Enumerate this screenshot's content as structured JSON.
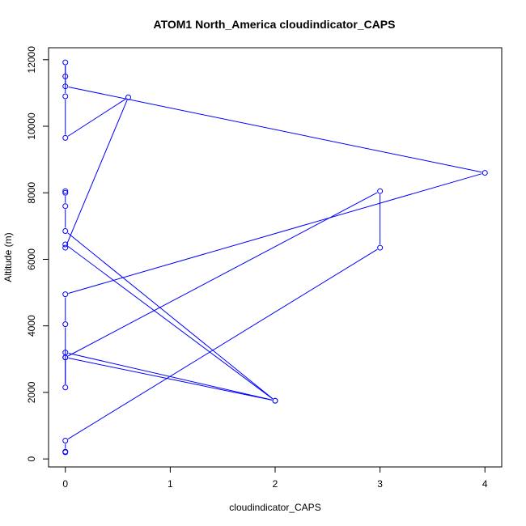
{
  "chart_data": {
    "type": "line",
    "title": "ATOM1 North_America cloudindicator_CAPS",
    "xlabel": "cloudindicator_CAPS",
    "ylabel": "Altitude (m)",
    "xlim": [
      -0.16,
      4.16
    ],
    "ylim": [
      -240,
      12360
    ],
    "xticks": [
      0,
      1,
      2,
      3,
      4
    ],
    "yticks": [
      0,
      2000,
      4000,
      6000,
      8000,
      10000,
      12000
    ],
    "xtick_labels": [
      "0",
      "1",
      "2",
      "3",
      "4"
    ],
    "ytick_labels": [
      "0",
      "2000",
      "4000",
      "6000",
      "8000",
      "10000",
      "12000"
    ],
    "grid": false,
    "series": [
      {
        "color": "#0000ff",
        "marker": "open-circle",
        "points": [
          {
            "x": 0,
            "y": 200
          },
          {
            "x": 0,
            "y": 220
          },
          {
            "x": 0,
            "y": 550
          },
          {
            "x": 3,
            "y": 6350
          },
          {
            "x": 3,
            "y": 8050
          },
          {
            "x": 0,
            "y": 3050
          },
          {
            "x": 0,
            "y": 3200
          },
          {
            "x": 2,
            "y": 1750
          },
          {
            "x": 0,
            "y": 3050
          },
          {
            "x": 0,
            "y": 2150
          },
          {
            "x": 0,
            "y": 4050
          },
          {
            "x": 0,
            "y": 4950
          },
          {
            "x": 4,
            "y": 8600
          },
          {
            "x": 0,
            "y": 11200
          },
          {
            "x": 0,
            "y": 11500
          },
          {
            "x": 0,
            "y": 11920
          },
          {
            "x": 0,
            "y": 10900
          },
          {
            "x": 0,
            "y": 9650
          },
          {
            "x": 0.6,
            "y": 10870
          },
          {
            "x": 0,
            "y": 6350
          },
          {
            "x": 0,
            "y": 6450
          },
          {
            "x": 2,
            "y": 1750
          },
          {
            "x": 0,
            "y": 6850
          },
          {
            "x": 0,
            "y": 7600
          },
          {
            "x": 0,
            "y": 8000
          },
          {
            "x": 0,
            "y": 8050
          }
        ]
      }
    ]
  }
}
